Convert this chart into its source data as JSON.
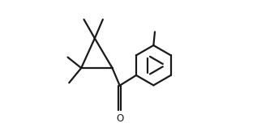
{
  "background_color": "#ffffff",
  "line_color": "#1a1a1a",
  "line_width": 1.6,
  "fig_width": 3.17,
  "fig_height": 1.68,
  "dpi": 100
}
